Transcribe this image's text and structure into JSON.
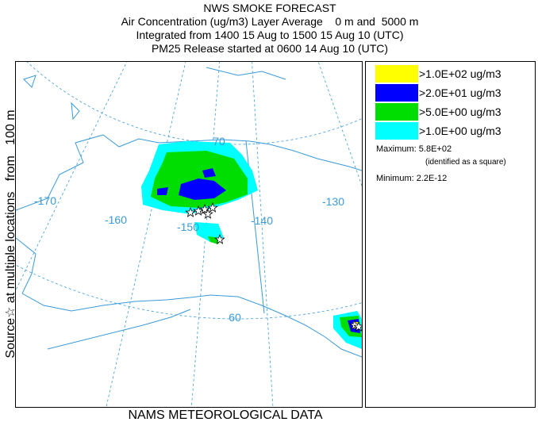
{
  "header": {
    "title": "NWS SMOKE FORECAST",
    "lines": [
      "Air Concentration (ug/m3) Layer Average    0 m and  5000 m",
      "Integrated from 1400 15 Aug to 1500 15 Aug 10 (UTC)",
      "PM25 Release started at 0600 14 Aug 10 (UTC)"
    ]
  },
  "side_label": "Source☆ at multiple locations   from   100 m",
  "footer": "NAMS METEOROLOGICAL DATA",
  "map": {
    "labels": [
      "-170",
      "-160",
      "-150",
      "-140",
      "-130",
      "70",
      "60"
    ]
  },
  "legend": {
    "items": [
      {
        "label": ">1.0E+02 ug/m3",
        "color": "#ffff00"
      },
      {
        "label": ">2.0E+01 ug/m3",
        "color": "#0000ff"
      },
      {
        "label": ">5.0E+00 ug/m3",
        "color": "#00dd00"
      },
      {
        "label": ">1.0E+00 ug/m3",
        "color": "#00ffff"
      }
    ]
  },
  "stats": {
    "maximum": "Maximum: 5.8E+02",
    "note": "(identified as a square)",
    "minimum": "Minimum: 2.2E-12"
  }
}
